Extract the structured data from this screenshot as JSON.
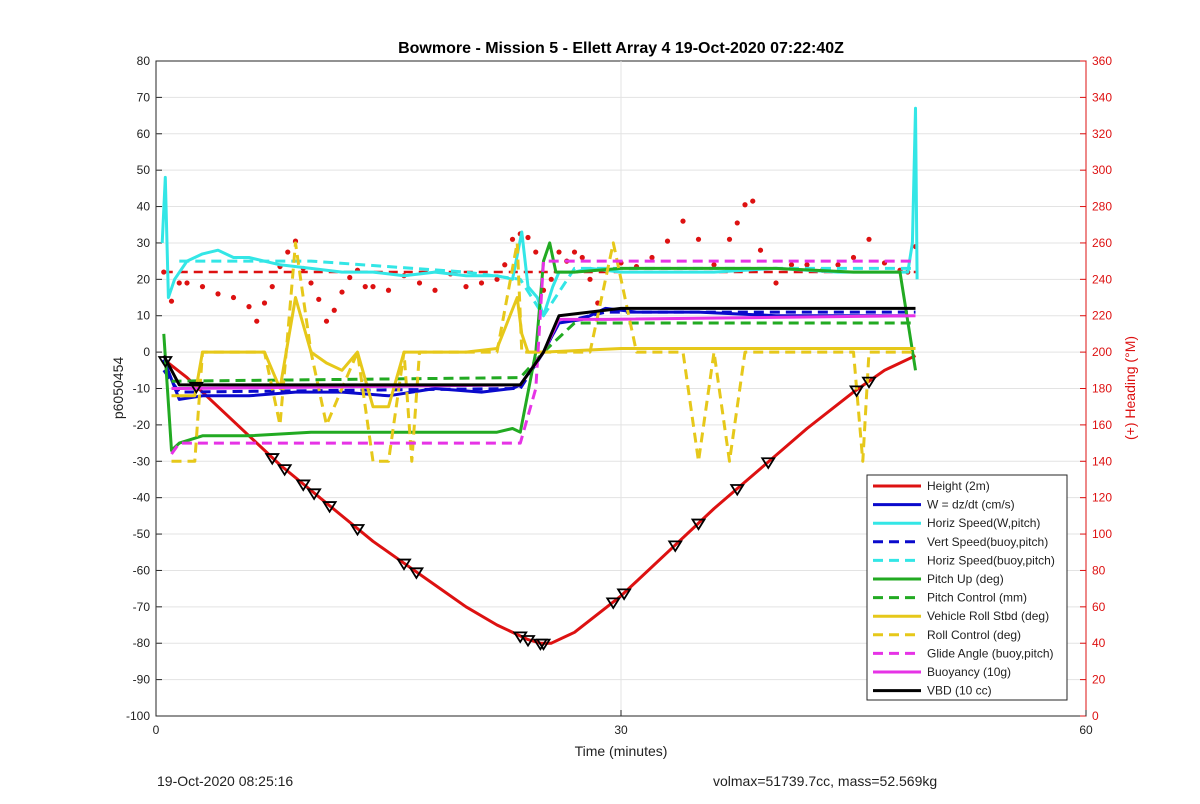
{
  "chart_data": {
    "type": "line",
    "title": "Bowmore - Mission 5 - Ellett Array 4 19-Oct-2020 07:22:40Z",
    "xlabel": "Time (minutes)",
    "ylabel": "p6050454",
    "y2label": "(+) Heading (°M)",
    "xlim": [
      0,
      60
    ],
    "ylim": [
      -100,
      80
    ],
    "y2lim": [
      0,
      360
    ],
    "xticks": [
      0,
      30,
      60
    ],
    "yticks": [
      -100,
      -90,
      -80,
      -70,
      -60,
      -50,
      -40,
      -30,
      -20,
      -10,
      0,
      10,
      20,
      30,
      40,
      50,
      60,
      70,
      80
    ],
    "y2ticks": [
      0,
      20,
      40,
      60,
      80,
      100,
      120,
      140,
      160,
      180,
      200,
      220,
      240,
      260,
      280,
      300,
      320,
      340,
      360
    ],
    "grid": true,
    "legend_position": "bottom-right",
    "colors": {
      "red": "#dd1111",
      "blue": "#0a0acc",
      "cyan": "#33e6e6",
      "green": "#22aa22",
      "yellow": "#e6c81a",
      "magenta": "#e633e6",
      "black": "#000000"
    },
    "series": [
      {
        "name": "Height (2m)",
        "color": "#dd1111",
        "style": "solid",
        "x": [
          0.5,
          2,
          4,
          6,
          8,
          10,
          12,
          14,
          16,
          18,
          20,
          22,
          24,
          24.8,
          25.5,
          27,
          30,
          33,
          36,
          39,
          42,
          45,
          47,
          49
        ],
        "y": [
          -2,
          -7,
          -15,
          -23,
          -31,
          -38,
          -45,
          -52,
          -58,
          -64,
          -70,
          -75,
          -79,
          -80,
          -80,
          -77,
          -67,
          -55,
          -43,
          -32,
          -21,
          -11,
          -5,
          -1
        ]
      },
      {
        "name": "W = dz/dt (cm/s)",
        "color": "#0a0acc",
        "style": "solid",
        "x": [
          0.5,
          1.5,
          3,
          6,
          9,
          12,
          15,
          18,
          21,
          23,
          23.5,
          25,
          26,
          27.5,
          29,
          31,
          35,
          40,
          45,
          48.5
        ],
        "y": [
          -2,
          -13,
          -12,
          -12,
          -11,
          -11,
          -12,
          -10,
          -11,
          -10,
          -9,
          0,
          8,
          9,
          12,
          11,
          11,
          10,
          10,
          10
        ]
      },
      {
        "name": "Horiz Speed(W,pitch)",
        "color": "#33e6e6",
        "style": "solid",
        "x": [
          0.4,
          0.6,
          0.8,
          1.2,
          2,
          3,
          4,
          5,
          6,
          8,
          10,
          12,
          14,
          16,
          18,
          20,
          22,
          23,
          23.6,
          24,
          24.6,
          25,
          25.6,
          26,
          27,
          28,
          30,
          33,
          36,
          40,
          44,
          47,
          48.5,
          48.8,
          49,
          49.1
        ],
        "y": [
          30,
          48,
          15,
          20,
          25,
          27,
          28,
          26,
          26,
          24,
          23,
          22,
          22,
          21,
          22,
          21,
          21,
          20,
          33,
          18,
          15,
          10,
          18,
          22,
          22,
          23,
          22,
          22,
          22,
          23,
          22,
          22,
          22,
          30,
          67,
          20
        ]
      },
      {
        "name": "Vert Speed(buoy,pitch)",
        "color": "#0a0acc",
        "style": "dashed",
        "x": [
          0.5,
          1.5,
          23.5,
          25,
          26,
          29,
          49
        ],
        "y": [
          -5,
          -11,
          -10,
          0,
          8,
          11,
          11
        ]
      },
      {
        "name": "Horiz Speed(buoy,pitch)",
        "color": "#33e6e6",
        "style": "dashed",
        "x": [
          1.5,
          10,
          20,
          23.5,
          25,
          27,
          49
        ],
        "y": [
          25,
          25,
          22,
          20,
          10,
          23,
          23
        ]
      },
      {
        "name": "Pitch Up (deg)",
        "color": "#22aa22",
        "style": "solid",
        "x": [
          0.5,
          1,
          1.5,
          3,
          6,
          10,
          14,
          18,
          22,
          23,
          23.5,
          24.5,
          25,
          25.4,
          25.8,
          27,
          30,
          35,
          40,
          45,
          48,
          49
        ],
        "y": [
          5,
          -27,
          -25,
          -23,
          -23,
          -22,
          -22,
          -22,
          -22,
          -21,
          -22,
          0,
          25,
          30,
          22,
          22,
          23,
          23,
          23,
          22,
          22,
          -5
        ]
      },
      {
        "name": "Pitch Control (mm)",
        "color": "#22aa22",
        "style": "dashed",
        "x": [
          1,
          23.5,
          25,
          27,
          29,
          49
        ],
        "y": [
          -8,
          -7,
          0,
          8,
          8,
          8
        ]
      },
      {
        "name": "Vehicle Roll Stbd (deg)",
        "color": "#e6c81a",
        "style": "solid",
        "x": [
          1,
          2.5,
          3,
          7,
          8,
          9,
          10,
          11,
          12,
          13,
          14,
          15,
          16,
          16.5,
          17,
          20,
          22,
          23.3,
          23.6,
          24,
          25,
          30,
          40,
          48,
          49
        ],
        "y": [
          -12,
          -12,
          0,
          0,
          -10,
          15,
          0,
          -3,
          -5,
          0,
          -15,
          -15,
          0,
          0,
          0,
          0,
          1,
          15,
          5,
          0,
          0,
          1,
          1,
          1,
          1
        ]
      },
      {
        "name": "Roll Control (deg)",
        "color": "#e6c81a",
        "style": "dashed",
        "x": [
          1,
          2.5,
          3,
          7,
          8,
          9,
          10,
          11,
          12,
          13,
          14,
          15,
          16,
          16.5,
          17,
          20,
          22,
          23.3,
          23.6,
          24,
          25,
          28,
          29.5,
          31,
          34,
          35,
          36,
          37,
          38,
          39,
          45,
          45.6,
          46,
          47,
          49
        ],
        "y": [
          -30,
          -30,
          0,
          0,
          -20,
          30,
          0,
          -20,
          -10,
          0,
          -30,
          -30,
          0,
          -30,
          0,
          0,
          0,
          30,
          0,
          0,
          0,
          0,
          30,
          0,
          0,
          -30,
          0,
          -30,
          0,
          0,
          0,
          -30,
          0,
          0,
          0
        ]
      },
      {
        "name": "Glide Angle (buoy,pitch)",
        "color": "#e633e6",
        "style": "dashed",
        "x": [
          1,
          1.5,
          23.5,
          24.5,
          25,
          27,
          49
        ],
        "y": [
          -28,
          -25,
          -25,
          -10,
          25,
          25,
          25
        ]
      },
      {
        "name": "Buoyancy (10g)",
        "color": "#e633e6",
        "style": "solid",
        "x": [
          1,
          1.5,
          23.5,
          25,
          26,
          29,
          49
        ],
        "y": [
          -10,
          -10,
          -9,
          0,
          9,
          9,
          10
        ]
      },
      {
        "name": "VBD (10 cc)",
        "color": "#000000",
        "style": "solid",
        "x": [
          0.5,
          1.5,
          23.5,
          25,
          26,
          30,
          49
        ],
        "y": [
          -1,
          -9,
          -9,
          0,
          10,
          12,
          12
        ]
      }
    ],
    "heading": {
      "axis": "right",
      "color": "#dd1111",
      "points_x": [
        0.5,
        1,
        1.5,
        2,
        3,
        4,
        5,
        6,
        6.5,
        7,
        7.5,
        8,
        8.5,
        9,
        9.5,
        10,
        10.5,
        11,
        11.5,
        12,
        12.5,
        13,
        13.5,
        14,
        15,
        16,
        17,
        18,
        19,
        20,
        21,
        22,
        22.5,
        23,
        23.5,
        24,
        24.5,
        25,
        25.5,
        26,
        26.5,
        27,
        27.5,
        28,
        28.5,
        29,
        30,
        31,
        32,
        33,
        34,
        35,
        36,
        37,
        37.5,
        38,
        38.5,
        39,
        40,
        41,
        42,
        43,
        44,
        45,
        46,
        47,
        48,
        48.5,
        49
      ],
      "points_y": [
        244,
        228,
        238,
        238,
        236,
        232,
        230,
        225,
        217,
        227,
        236,
        247,
        255,
        261,
        246,
        238,
        229,
        217,
        223,
        233,
        241,
        245,
        236,
        236,
        234,
        242,
        238,
        234,
        243,
        236,
        238,
        240,
        248,
        262,
        265,
        263,
        255,
        234,
        240,
        255,
        250,
        255,
        252,
        240,
        227,
        245,
        249,
        247,
        252,
        261,
        272,
        262,
        248,
        262,
        271,
        281,
        283,
        256,
        238,
        248,
        248,
        245,
        248,
        252,
        262,
        249,
        245,
        244,
        258
      ],
      "mean_line_y": 244
    },
    "markers": {
      "shape": "triangle",
      "series": "Height (2m)",
      "x": [
        0.6,
        2.6,
        7.5,
        8.3,
        9.5,
        10.2,
        11.2,
        13,
        16,
        16.8,
        23.5,
        24,
        24.8,
        25,
        29.5,
        30.2,
        33.5,
        35,
        37.5,
        39.5,
        45.2,
        46
      ]
    },
    "footer_left": "19-Oct-2020 08:25:16",
    "footer_right": "volmax=51739.7cc, mass=52.569kg"
  }
}
